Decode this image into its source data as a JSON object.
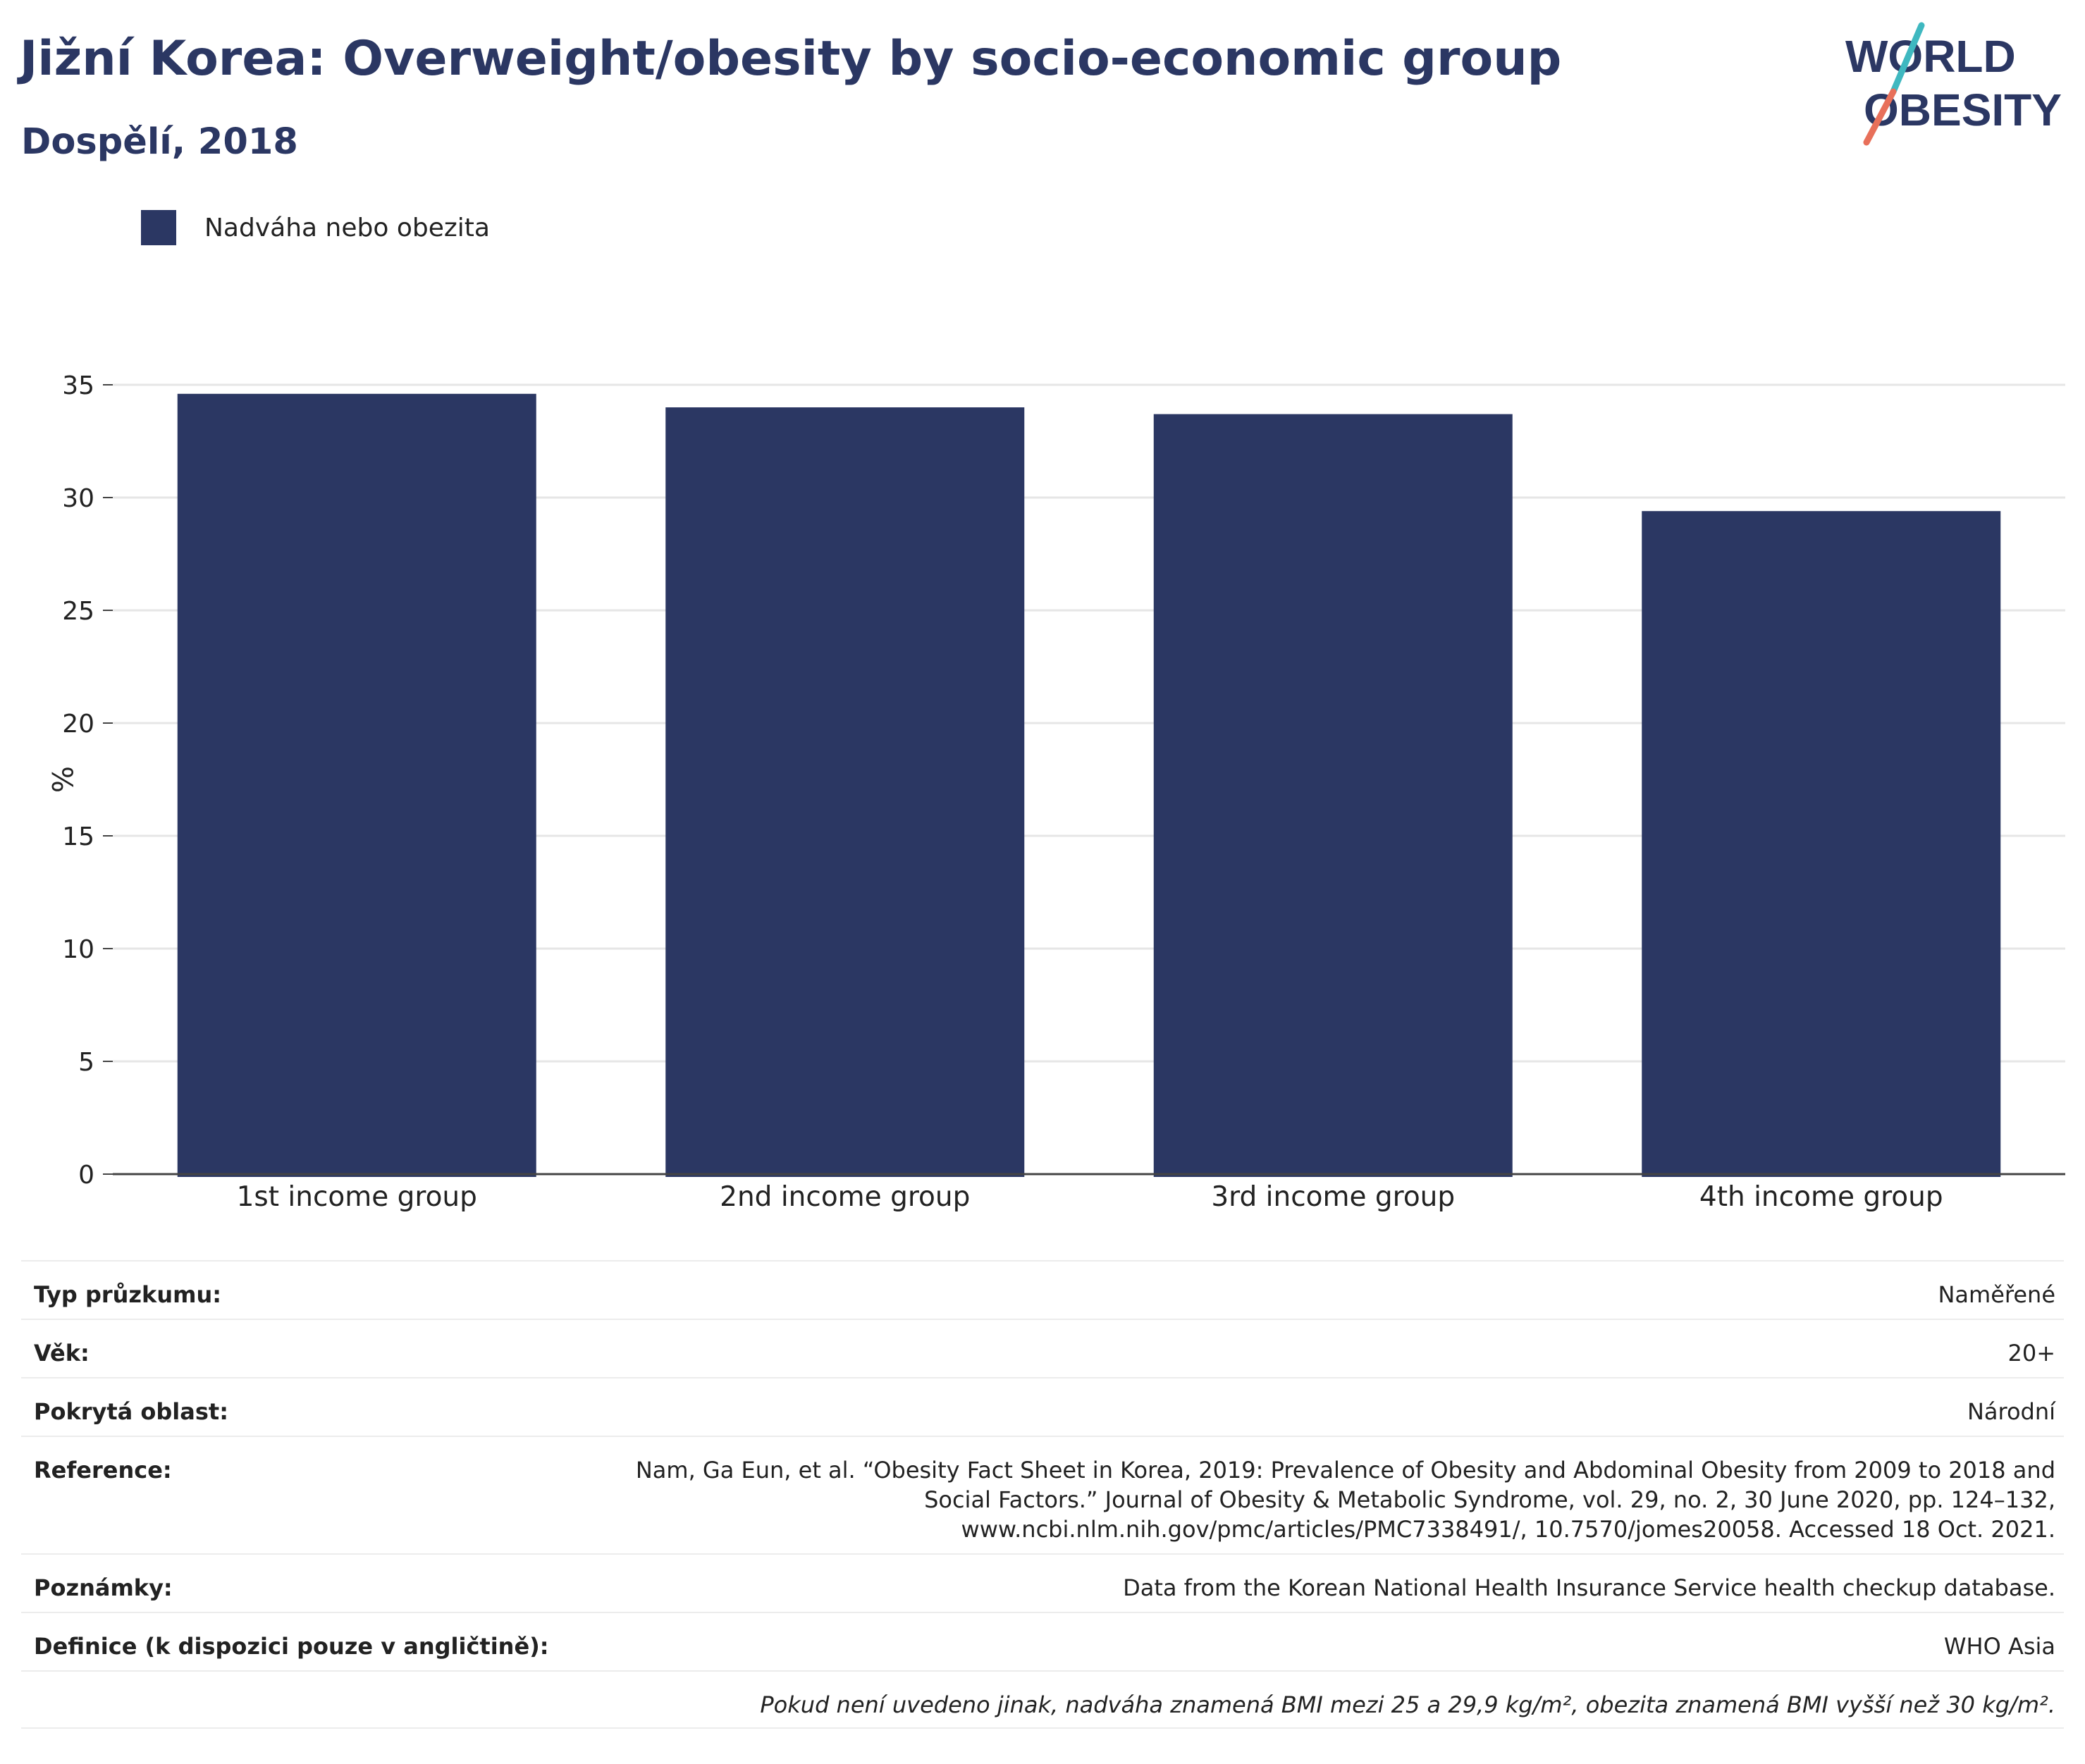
{
  "header": {
    "title": "Jižní Korea: Overweight/obesity by socio-economic group",
    "subtitle": "Dospělí, 2018",
    "logo_line1": "WORLD",
    "logo_line2": "OBESITY"
  },
  "legend": {
    "label": "Nadváha nebo obezita",
    "color": "#2b3763"
  },
  "chart_data": {
    "type": "bar",
    "categories": [
      "1st income group",
      "2nd income group",
      "3rd income group",
      "4th income group"
    ],
    "series": [
      {
        "name": "Nadváha nebo obezita",
        "values": [
          34.6,
          34.0,
          33.7,
          29.4
        ]
      }
    ],
    "ylabel": "%",
    "ylim": [
      0,
      35
    ],
    "yticks": [
      0,
      5,
      10,
      15,
      20,
      25,
      30,
      35
    ],
    "grid": true,
    "bar_color": "#2b3763"
  },
  "meta": {
    "survey_type_label": "Typ průzkumu:",
    "survey_type_value": "Naměřené",
    "age_label": "Věk:",
    "age_value": "20+",
    "coverage_label": "Pokrytá oblast:",
    "coverage_value": "Národní",
    "reference_label": "Reference:",
    "reference_value": "Nam, Ga Eun, et al. “Obesity Fact Sheet in Korea, 2019: Prevalence of Obesity and Abdominal Obesity from 2009 to 2018 and Social Factors.” Journal of Obesity & Metabolic Syndrome, vol. 29, no. 2, 30 June 2020, pp. 124–132, www.ncbi.nlm.nih.gov/pmc/articles/PMC7338491/, 10.7570/jomes20058. Accessed 18 Oct. 2021.",
    "notes_label": "Poznámky:",
    "notes_value": "Data from the Korean National Health Insurance Service health checkup database.",
    "definition_label": "Definice (k dispozici pouze v angličtině):",
    "definition_value": "WHO Asia",
    "footnote": "Pokud není uvedeno jinak, nadváha znamená BMI mezi 25 a 29,9 kg/m², obezita znamená BMI vyšší než 30 kg/m²."
  }
}
